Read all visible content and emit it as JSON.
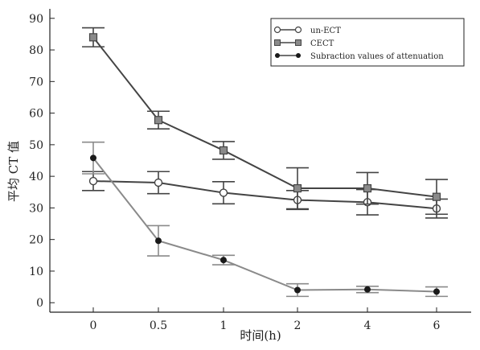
{
  "chart_data": {
    "type": "line",
    "title": "",
    "xlabel": "时间(h)",
    "ylabel": "平均 CT 值",
    "categories": [
      "0",
      "0.5",
      "1",
      "2",
      "4",
      "6"
    ],
    "ylim": [
      -3,
      93
    ],
    "yticks": [
      0,
      10,
      20,
      30,
      40,
      50,
      60,
      70,
      80,
      90
    ],
    "grid": false,
    "legend_position": "top-right",
    "series": [
      {
        "name": "un-ECT",
        "marker": "open-circle",
        "color": "#444444",
        "values": [
          38.5,
          38.0,
          34.8,
          32.5,
          31.8,
          29.8
        ],
        "errors": [
          3.0,
          3.5,
          3.5,
          3.0,
          4.0,
          3.0
        ]
      },
      {
        "name": "CECT",
        "marker": "filled-square",
        "color": "#444444",
        "values": [
          84.0,
          57.8,
          48.2,
          36.2,
          36.2,
          33.5
        ],
        "errors": [
          3.0,
          2.8,
          2.8,
          6.5,
          5.0,
          5.5
        ]
      },
      {
        "name": "Subraction values of attenuation",
        "marker": "filled-circle",
        "color": "#8a8a8a",
        "values": [
          45.8,
          19.6,
          13.5,
          4.0,
          4.2,
          3.5
        ],
        "errors": [
          5.0,
          4.8,
          1.5,
          2.0,
          1.0,
          1.5
        ]
      }
    ]
  }
}
